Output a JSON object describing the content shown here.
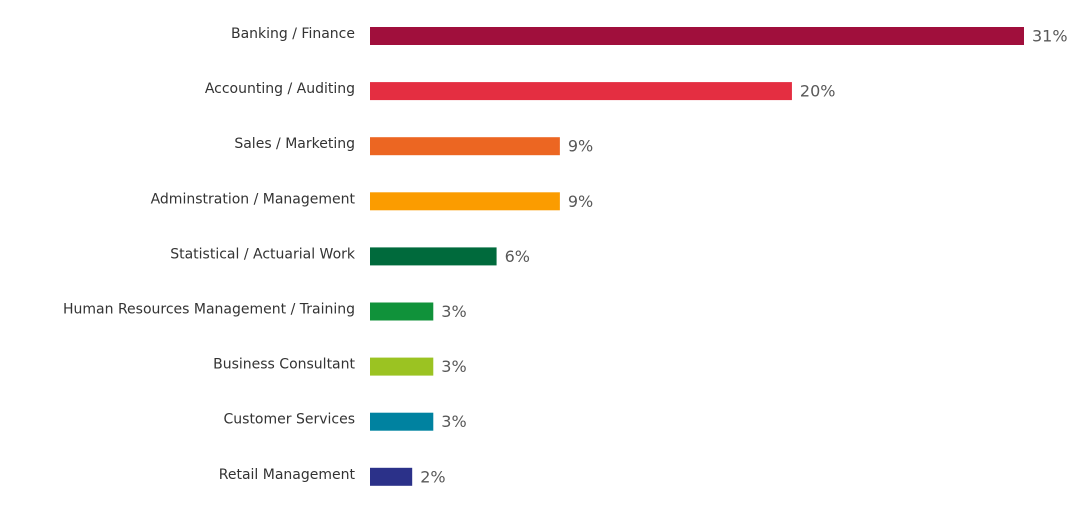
{
  "chart_data": {
    "type": "bar",
    "orientation": "horizontal",
    "categories": [
      "Banking / Finance",
      "Accounting / Auditing",
      "Sales / Marketing",
      "Adminstration / Management",
      "Statistical / Actuarial Work",
      "Human Resources Management / Training",
      "Business Consultant",
      "Customer Services",
      "Retail Management"
    ],
    "values": [
      31,
      20,
      9,
      9,
      6,
      3,
      3,
      3,
      2
    ],
    "value_labels": [
      "31%",
      "20%",
      "9%",
      "9%",
      "6%",
      "3%",
      "3%",
      "3%",
      "2%"
    ],
    "colors": [
      "#a00f3c",
      "#e42e41",
      "#ec6622",
      "#fb9c00",
      "#006a3c",
      "#10923a",
      "#9bc322",
      "#0082a0",
      "#2b3189"
    ]
  }
}
